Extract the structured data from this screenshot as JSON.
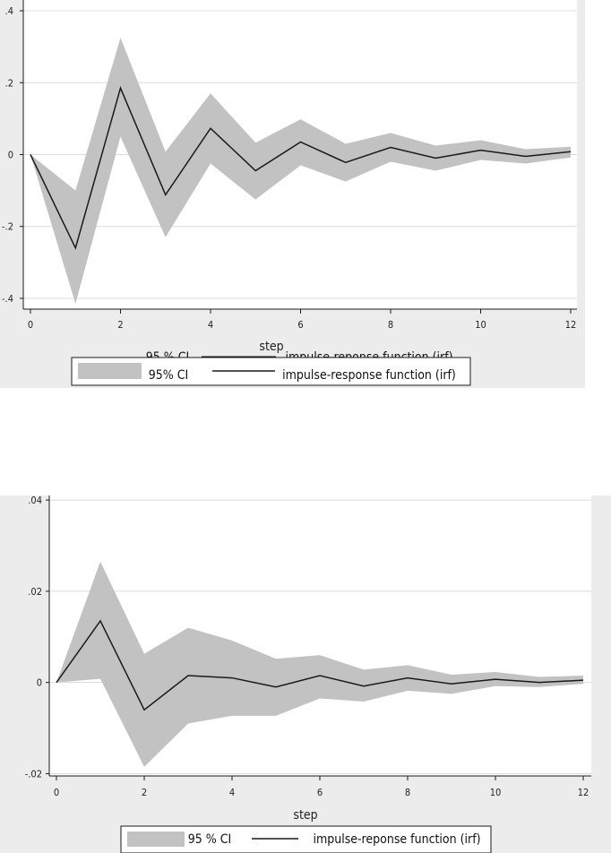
{
  "chart_data": [
    {
      "type": "line",
      "title": "",
      "xlabel": "step",
      "ylabel": "",
      "xlim": [
        0,
        12
      ],
      "ylim": [
        -0.43,
        0.43
      ],
      "x_ticks": [
        "0",
        "2",
        "4",
        "6",
        "8",
        "10",
        "12"
      ],
      "y_ticks": [
        ".4",
        ".2",
        "0",
        "-.2",
        "-.4"
      ],
      "grid": true,
      "x": [
        0,
        1,
        2,
        3,
        4,
        5,
        6,
        7,
        8,
        9,
        10,
        11,
        12
      ],
      "series": [
        {
          "name": "impulse-response function (irf)",
          "kind": "line",
          "values": [
            0,
            -0.26,
            0.185,
            -0.112,
            0.073,
            -0.045,
            0.035,
            -0.022,
            0.02,
            -0.01,
            0.012,
            -0.005,
            0.008
          ]
        },
        {
          "name": "95% CI",
          "kind": "band",
          "lower": [
            0,
            -0.415,
            0.05,
            -0.23,
            -0.025,
            -0.125,
            -0.03,
            -0.075,
            -0.02,
            -0.045,
            -0.015,
            -0.025,
            -0.008
          ],
          "upper": [
            0,
            -0.1,
            0.325,
            0.008,
            0.17,
            0.033,
            0.098,
            0.03,
            0.06,
            0.025,
            0.04,
            0.015,
            0.022
          ]
        }
      ],
      "legend": {
        "placement": "bottom",
        "header": {
          "ci_label": "95 % CI",
          "irf_label": "impulse-reponse function (irf)"
        },
        "entries": {
          "ci_label": "95% CI",
          "irf_label": "impulse-response function (irf)"
        }
      },
      "colors": {
        "band": "#c2c2c2",
        "line": "#1a1a1a",
        "panel": "#ececec",
        "plot": "#ffffff",
        "grid": "#dcdcdc"
      }
    },
    {
      "type": "line",
      "title": "",
      "xlabel": "step",
      "ylabel": "",
      "xlim": [
        0,
        12
      ],
      "ylim": [
        -0.0205,
        0.041
      ],
      "x_ticks": [
        "0",
        "2",
        "4",
        "6",
        "8",
        "10",
        "12"
      ],
      "y_ticks": [
        ".04",
        ".02",
        "0",
        "-.02"
      ],
      "grid": true,
      "x": [
        0,
        1,
        2,
        3,
        4,
        5,
        6,
        7,
        8,
        9,
        10,
        11,
        12
      ],
      "series": [
        {
          "name": "impulse-reponse function (irf)",
          "kind": "line",
          "values": [
            0,
            0.0135,
            -0.006,
            0.0015,
            0.001,
            -0.001,
            0.0015,
            -0.0008,
            0.001,
            -0.0003,
            0.0007,
            0,
            0.0005
          ]
        },
        {
          "name": "95 % CI",
          "kind": "band",
          "lower": [
            0,
            0.0008,
            -0.0185,
            -0.009,
            -0.0073,
            -0.0073,
            -0.0035,
            -0.0042,
            -0.0018,
            -0.0025,
            -0.0008,
            -0.001,
            -0.0003
          ],
          "upper": [
            0,
            0.0265,
            0.0063,
            0.012,
            0.0092,
            0.0052,
            0.006,
            0.0028,
            0.0038,
            0.0017,
            0.0023,
            0.0012,
            0.0015
          ]
        }
      ],
      "legend": {
        "placement": "bottom",
        "entries": {
          "ci_label": "95 % CI",
          "irf_label": "impulse-reponse function (irf)"
        }
      },
      "colors": {
        "band": "#c2c2c2",
        "line": "#1a1a1a",
        "panel": "#ececec",
        "plot": "#ffffff",
        "grid": "#dcdcdc"
      }
    }
  ]
}
